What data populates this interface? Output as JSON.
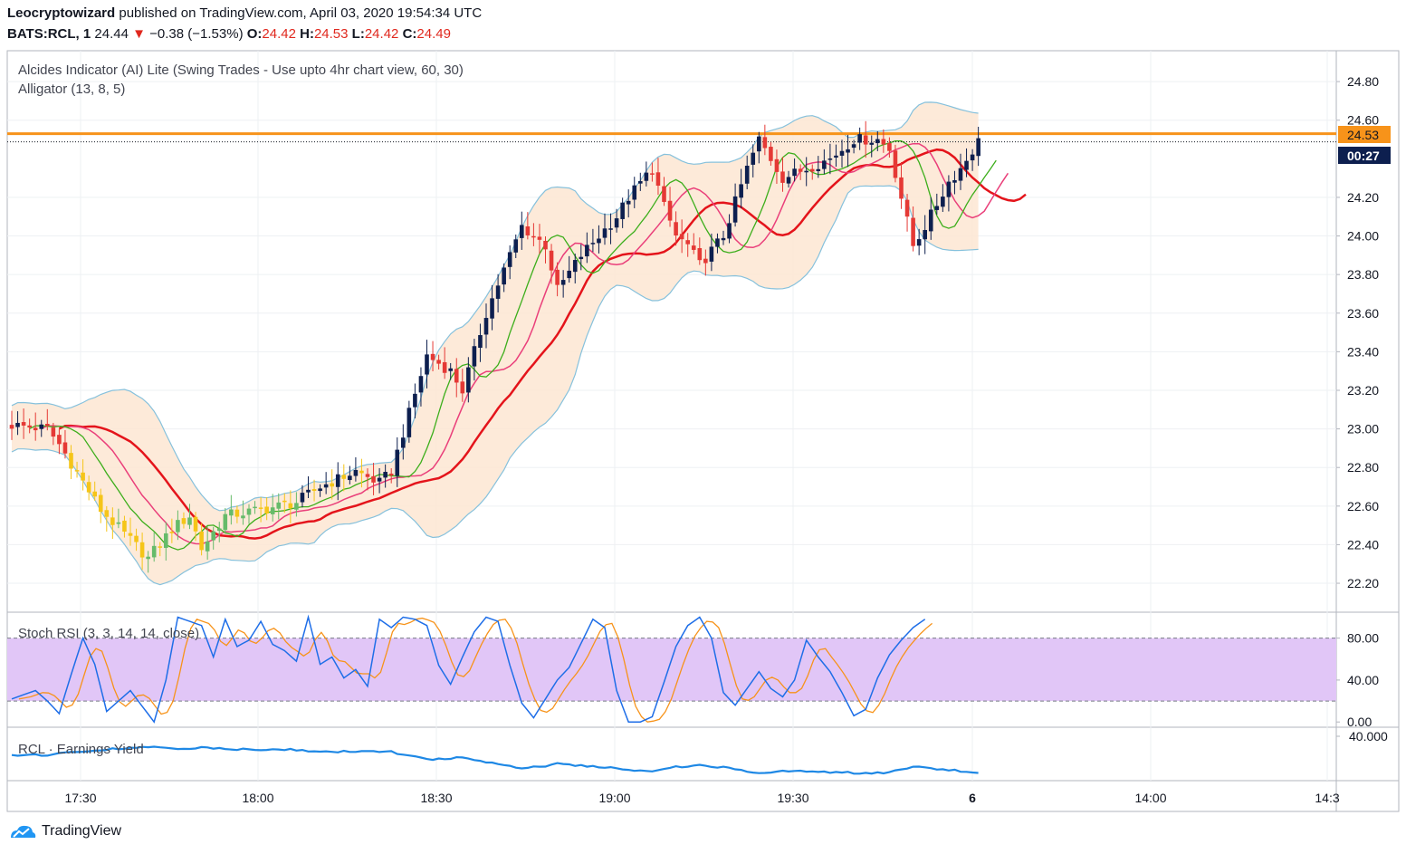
{
  "header": {
    "author": "Leocryptowizard",
    "published_text": "published on TradingView.com, April 03, 2020 19:54:34 UTC",
    "symbol": "BATS:RCL, 1",
    "last": "24.44",
    "change": "−0.38 (−1.53%)",
    "o_label": "O:",
    "o_value": "24.42",
    "h_label": "H:",
    "h_value": "24.53",
    "l_label": "L:",
    "l_value": "24.42",
    "c_label": "C:",
    "c_value": "24.49"
  },
  "footer": {
    "brand": "TradingView"
  },
  "colors": {
    "up": "#0d1f4f",
    "down": "#e53935",
    "yellow": "#f5c518",
    "ltgreen": "#66bb6a",
    "jaw": "#e4141b",
    "teeth": "#ea3f7a",
    "lips": "#3cae1b",
    "band": "#86c1dc",
    "fill": "#fde6d2",
    "hline": "#f7931a",
    "rsi_k": "#1e6ee8",
    "rsi_d": "#f7931a",
    "rsi_band": "#e1c6f7",
    "yield": "#1e88e5"
  },
  "chart_data": [
    {
      "type": "candlestick",
      "indicator_labels": [
        "Alcides Indicator (AI) Lite (Swing Trades - Use upto 4hr chart view, 60, 30)",
        "Alligator (13, 8, 5)"
      ],
      "x_ticks": [
        "17:30",
        "18:00",
        "18:30",
        "19:00",
        "19:30",
        "6",
        "14:00",
        "14:3"
      ],
      "y_ticks": [
        "24.80",
        "24.60",
        "24.20",
        "24.00",
        "23.80",
        "23.60",
        "23.40",
        "23.20",
        "23.00",
        "22.80",
        "22.60",
        "22.40",
        "22.20"
      ],
      "ylim": [
        22.05,
        24.96
      ],
      "price_label": "24.53",
      "countdown_label": "00:27",
      "horizontal_line": 24.53,
      "close_anchors": [
        [
          0,
          23.02
        ],
        [
          6,
          23.0
        ],
        [
          8,
          22.92
        ],
        [
          15,
          22.58
        ],
        [
          23,
          22.33
        ],
        [
          27,
          22.48
        ],
        [
          30,
          22.55
        ],
        [
          32,
          22.38
        ],
        [
          36,
          22.55
        ],
        [
          42,
          22.58
        ],
        [
          48,
          22.62
        ],
        [
          52,
          22.7
        ],
        [
          58,
          22.78
        ],
        [
          62,
          22.72
        ],
        [
          64,
          22.78
        ],
        [
          70,
          23.38
        ],
        [
          74,
          23.3
        ],
        [
          76,
          23.2
        ],
        [
          80,
          23.6
        ],
        [
          86,
          24.05
        ],
        [
          90,
          23.95
        ],
        [
          92,
          23.72
        ],
        [
          96,
          23.9
        ],
        [
          102,
          24.1
        ],
        [
          104,
          24.2
        ],
        [
          108,
          24.35
        ],
        [
          110,
          24.15
        ],
        [
          112,
          24.0
        ],
        [
          114,
          23.95
        ],
        [
          116,
          23.85
        ],
        [
          120,
          24.0
        ],
        [
          124,
          24.35
        ],
        [
          126,
          24.5
        ],
        [
          128,
          24.4
        ],
        [
          130,
          24.3
        ],
        [
          134,
          24.35
        ],
        [
          138,
          24.4
        ],
        [
          142,
          24.5
        ],
        [
          146,
          24.5
        ],
        [
          148,
          24.45
        ],
        [
          150,
          24.2
        ],
        [
          152,
          23.95
        ],
        [
          154,
          24.05
        ],
        [
          158,
          24.28
        ],
        [
          160,
          24.35
        ],
        [
          163,
          24.49
        ]
      ]
    },
    {
      "type": "line",
      "title": "Stoch RSI (3, 3, 14, 14, close)",
      "y_ticks": [
        "80.00",
        "40.00",
        "0.00"
      ],
      "ylim": [
        -5,
        103
      ],
      "band": [
        20,
        80
      ],
      "k_anchors": [
        [
          0,
          22
        ],
        [
          4,
          30
        ],
        [
          6,
          20
        ],
        [
          8,
          8
        ],
        [
          10,
          45
        ],
        [
          12,
          80
        ],
        [
          14,
          55
        ],
        [
          16,
          10
        ],
        [
          18,
          20
        ],
        [
          20,
          30
        ],
        [
          22,
          15
        ],
        [
          24,
          0
        ],
        [
          26,
          40
        ],
        [
          28,
          100
        ],
        [
          32,
          92
        ],
        [
          34,
          62
        ],
        [
          36,
          98
        ],
        [
          38,
          72
        ],
        [
          40,
          78
        ],
        [
          42,
          96
        ],
        [
          44,
          74
        ],
        [
          46,
          68
        ],
        [
          48,
          58
        ],
        [
          50,
          100
        ],
        [
          52,
          55
        ],
        [
          54,
          62
        ],
        [
          56,
          42
        ],
        [
          58,
          50
        ],
        [
          60,
          34
        ],
        [
          62,
          98
        ],
        [
          64,
          90
        ],
        [
          66,
          100
        ],
        [
          68,
          98
        ],
        [
          70,
          92
        ],
        [
          72,
          54
        ],
        [
          74,
          36
        ],
        [
          76,
          62
        ],
        [
          78,
          86
        ],
        [
          80,
          100
        ],
        [
          82,
          96
        ],
        [
          84,
          54
        ],
        [
          86,
          18
        ],
        [
          88,
          4
        ],
        [
          90,
          22
        ],
        [
          92,
          40
        ],
        [
          94,
          52
        ],
        [
          96,
          75
        ],
        [
          98,
          98
        ],
        [
          100,
          90
        ],
        [
          102,
          30
        ],
        [
          104,
          0
        ],
        [
          106,
          0
        ],
        [
          108,
          5
        ],
        [
          110,
          38
        ],
        [
          112,
          72
        ],
        [
          114,
          92
        ],
        [
          116,
          100
        ],
        [
          118,
          80
        ],
        [
          120,
          28
        ],
        [
          122,
          16
        ],
        [
          124,
          32
        ],
        [
          126,
          48
        ],
        [
          128,
          32
        ],
        [
          130,
          24
        ],
        [
          132,
          40
        ],
        [
          134,
          78
        ],
        [
          136,
          62
        ],
        [
          138,
          48
        ],
        [
          140,
          28
        ],
        [
          142,
          6
        ],
        [
          144,
          12
        ],
        [
          146,
          42
        ],
        [
          148,
          64
        ],
        [
          150,
          78
        ],
        [
          152,
          90
        ],
        [
          154,
          98
        ]
      ],
      "yield_label": "RCL · Earnings Yield",
      "yield_ticks": [
        "40.000"
      ]
    }
  ]
}
